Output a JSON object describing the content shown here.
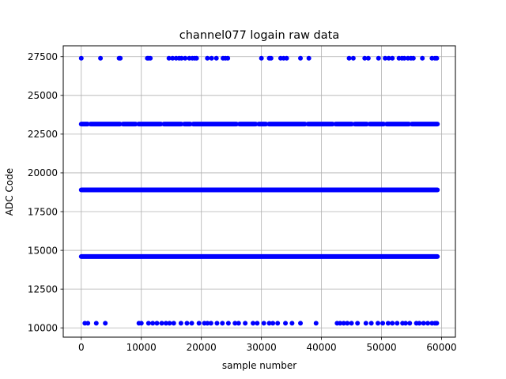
{
  "chart_data": {
    "type": "scatter",
    "title": "channel077 logain raw data",
    "xlabel": "sample number",
    "ylabel": "ADC Code",
    "xlim": [
      -3000,
      62300
    ],
    "ylim": [
      9400,
      28200
    ],
    "xticks": [
      0,
      10000,
      20000,
      30000,
      40000,
      50000,
      60000
    ],
    "xtick_labels": [
      "0",
      "10000",
      "20000",
      "30000",
      "40000",
      "50000",
      "60000"
    ],
    "yticks": [
      10000,
      12500,
      15000,
      17500,
      20000,
      22500,
      25000,
      27500
    ],
    "ytick_labels": [
      "10000",
      "12500",
      "15000",
      "17500",
      "20000",
      "22500",
      "25000",
      "27500"
    ],
    "grid": true,
    "marker_color": "#0000ff",
    "series": [
      {
        "level": 27400,
        "x": [
          0,
          3200,
          6300,
          6500,
          11000,
          11200,
          11500,
          14600,
          15200,
          15800,
          16300,
          16700,
          17300,
          18000,
          18500,
          18900,
          19200,
          21000,
          21700,
          22500,
          23600,
          24000,
          24400,
          30000,
          31300,
          31600,
          33200,
          33700,
          34200,
          36500,
          37900,
          44600,
          45300,
          47200,
          47800,
          49500,
          50600,
          51200,
          51800,
          52900,
          53400,
          53800,
          54400,
          54900,
          55300,
          56800,
          58400,
          58900,
          59200
        ]
      },
      {
        "level": 23150,
        "x_start": 0,
        "x_end": 59300,
        "density": "dense with small gaps"
      },
      {
        "level": 18900,
        "x_start": 0,
        "x_end": 59300,
        "density": "continuous"
      },
      {
        "level": 14600,
        "x_start": 0,
        "x_end": 59300,
        "density": "continuous"
      },
      {
        "level": 10300,
        "x": [
          600,
          1100,
          2500,
          4000,
          9600,
          10000,
          11200,
          11900,
          12600,
          13400,
          14100,
          14700,
          15400,
          16600,
          17600,
          18400,
          19600,
          20500,
          21000,
          21600,
          22600,
          23500,
          24500,
          25600,
          26200,
          27300,
          28600,
          29300,
          30400,
          31300,
          31900,
          32700,
          34000,
          35100,
          36500,
          39100,
          42600,
          43100,
          43700,
          44300,
          45000,
          46000,
          47400,
          48300,
          49400,
          50200,
          51100,
          51800,
          52600,
          53500,
          54000,
          54700,
          55800,
          56300,
          57000,
          57700,
          58400,
          58900,
          59200
        ]
      }
    ]
  }
}
